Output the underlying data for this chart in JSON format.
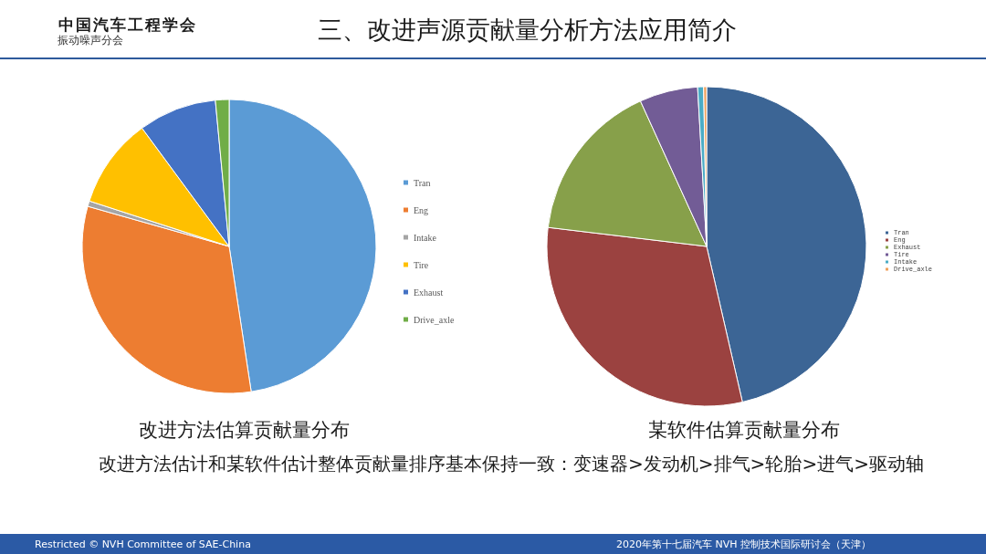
{
  "chart_data": [
    {
      "type": "other",
      "title": "三、改进声源贡献量分析方法应用简介",
      "annotations": [
        "中国汽车工程学会",
        "振动噪声分会"
      ]
    },
    {
      "type": "pie",
      "title": "改进方法估算贡献量分布",
      "categories": [
        "Tran",
        "Eng",
        "Intake",
        "Tire",
        "Exhaust",
        "Drive_axle"
      ],
      "values": [
        47.6,
        31.8,
        0.6,
        9.9,
        8.6,
        1.5
      ],
      "colors": [
        "#5b9bd5",
        "#ed7d31",
        "#a5a5a5",
        "#ffc000",
        "#4472c4",
        "#70ad47"
      ],
      "legend": "right"
    },
    {
      "type": "pie",
      "title": "某软件估算贡献量分布",
      "categories": [
        "Tran",
        "Eng",
        "Exhaust",
        "Tire",
        "Intake",
        "Drive_axle"
      ],
      "values": [
        46.4,
        30.5,
        16.3,
        5.9,
        0.6,
        0.3
      ],
      "colors": [
        "#3c6595",
        "#9b4240",
        "#87a04a",
        "#725c96",
        "#4bacc6",
        "#f0a05a"
      ],
      "legend": "right"
    },
    {
      "type": "other",
      "annotations": [
        "改进方法估计和某软件估计整体贡献量排序基本保持一致：变速器>发动机>排气>轮胎>进气>驱动轴",
        "Restricted © NVH Committee of SAE-China",
        "2020年第十七届汽车 NVH 控制技术国际研讨会（天津）"
      ]
    }
  ]
}
